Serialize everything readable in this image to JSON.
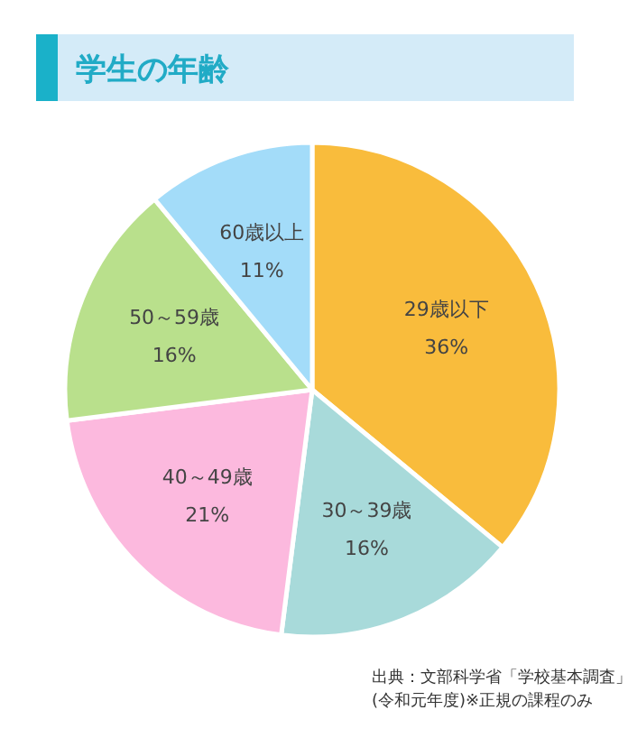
{
  "chart_data": {
    "type": "pie",
    "title": "学生の年齢",
    "categories": [
      "29歳以下",
      "30～39歳",
      "40～49歳",
      "50～59歳",
      "60歳以上"
    ],
    "values": [
      36,
      16,
      21,
      16,
      11
    ],
    "colors": [
      "#f9bc3c",
      "#a8dada",
      "#fcb9de",
      "#b9e08c",
      "#a3dcf9"
    ],
    "value_labels": [
      "36%",
      "16%",
      "21%",
      "16%",
      "11%"
    ],
    "annotations": [
      "出典：文部科学省「学校基本調査」",
      "(令和元年度)※正規の課程のみ"
    ]
  }
}
